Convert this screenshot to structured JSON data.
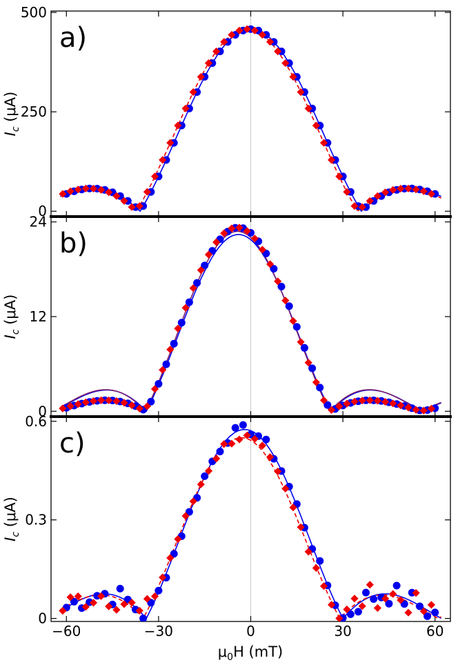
{
  "colors": {
    "blue": "#0000ee",
    "red": "#ee0000",
    "purple": "#7a1f6e",
    "zero_line": "#c8c8c8"
  },
  "xaxis": {
    "label_prefix": "μ",
    "label_sub": "0",
    "label_suffix": "H (mT)",
    "range": [
      -65,
      65
    ],
    "ticks": [
      -60,
      -30,
      0,
      30,
      60
    ],
    "tick_labels": [
      "−60",
      "−30",
      "0",
      "30",
      "60"
    ]
  },
  "chart_data": [
    {
      "type": "scatter",
      "panel_label": "a)",
      "ylabel_main": "I",
      "ylabel_sub": "c",
      "ylabel_unit": " (μA)",
      "ylim": [
        -10,
        500
      ],
      "yticks": [
        0,
        250,
        500
      ],
      "ytick_labels": [
        "0",
        "250",
        "500"
      ],
      "pattern": {
        "peak": 458,
        "zero": 36,
        "offset_blue": 0,
        "offset_red": -1.2,
        "side": 0.125
      },
      "fits": [
        {
          "color_key": "blue",
          "dash": "none",
          "peak": 458,
          "offset": 0,
          "zero": 36,
          "side": 0.125
        },
        {
          "color_key": "red",
          "dash": "6,4",
          "peak": 458,
          "offset": -1.2,
          "zero": 36,
          "side": 0.125
        }
      ]
    },
    {
      "type": "scatter",
      "panel_label": "b)",
      "ylabel_main": "I",
      "ylabel_sub": "c",
      "ylabel_unit": " (μA)",
      "ylim": [
        -0.5,
        24.5
      ],
      "yticks": [
        0,
        12,
        24
      ],
      "ytick_labels": [
        "0",
        "12",
        "24"
      ],
      "pattern": {
        "peak": 23.3,
        "zero": 30,
        "offset_blue": -4,
        "offset_red": -4.5,
        "side": 0.06
      },
      "fits": [
        {
          "color_key": "blue",
          "dash": "none",
          "peak": 22.4,
          "offset": -4,
          "zero": 30,
          "side": 0.12
        },
        {
          "color_key": "purple",
          "dash": "none",
          "peak": 22.8,
          "offset": -4.3,
          "zero": 30,
          "side": 0.12
        }
      ]
    },
    {
      "type": "scatter",
      "panel_label": "c)",
      "ylabel_main": "I",
      "ylabel_sub": "c",
      "ylabel_unit": " (μA)",
      "ylim": [
        -0.005,
        0.61
      ],
      "yticks": [
        0,
        0.3,
        0.6
      ],
      "ytick_labels": [
        "0",
        "0.3",
        "0.6"
      ],
      "pattern": {
        "peak": 0.575,
        "zero": 32,
        "offset_blue": -2,
        "offset_red": -3,
        "side": 0.13,
        "noise": 0.025
      },
      "fits": [
        {
          "color_key": "blue",
          "dash": "none",
          "peak": 0.575,
          "offset": -2,
          "zero": 32,
          "side": 0.13
        },
        {
          "color_key": "red",
          "dash": "6,4",
          "peak": 0.55,
          "offset": -3,
          "zero": 32,
          "side": 0.13
        }
      ]
    }
  ]
}
